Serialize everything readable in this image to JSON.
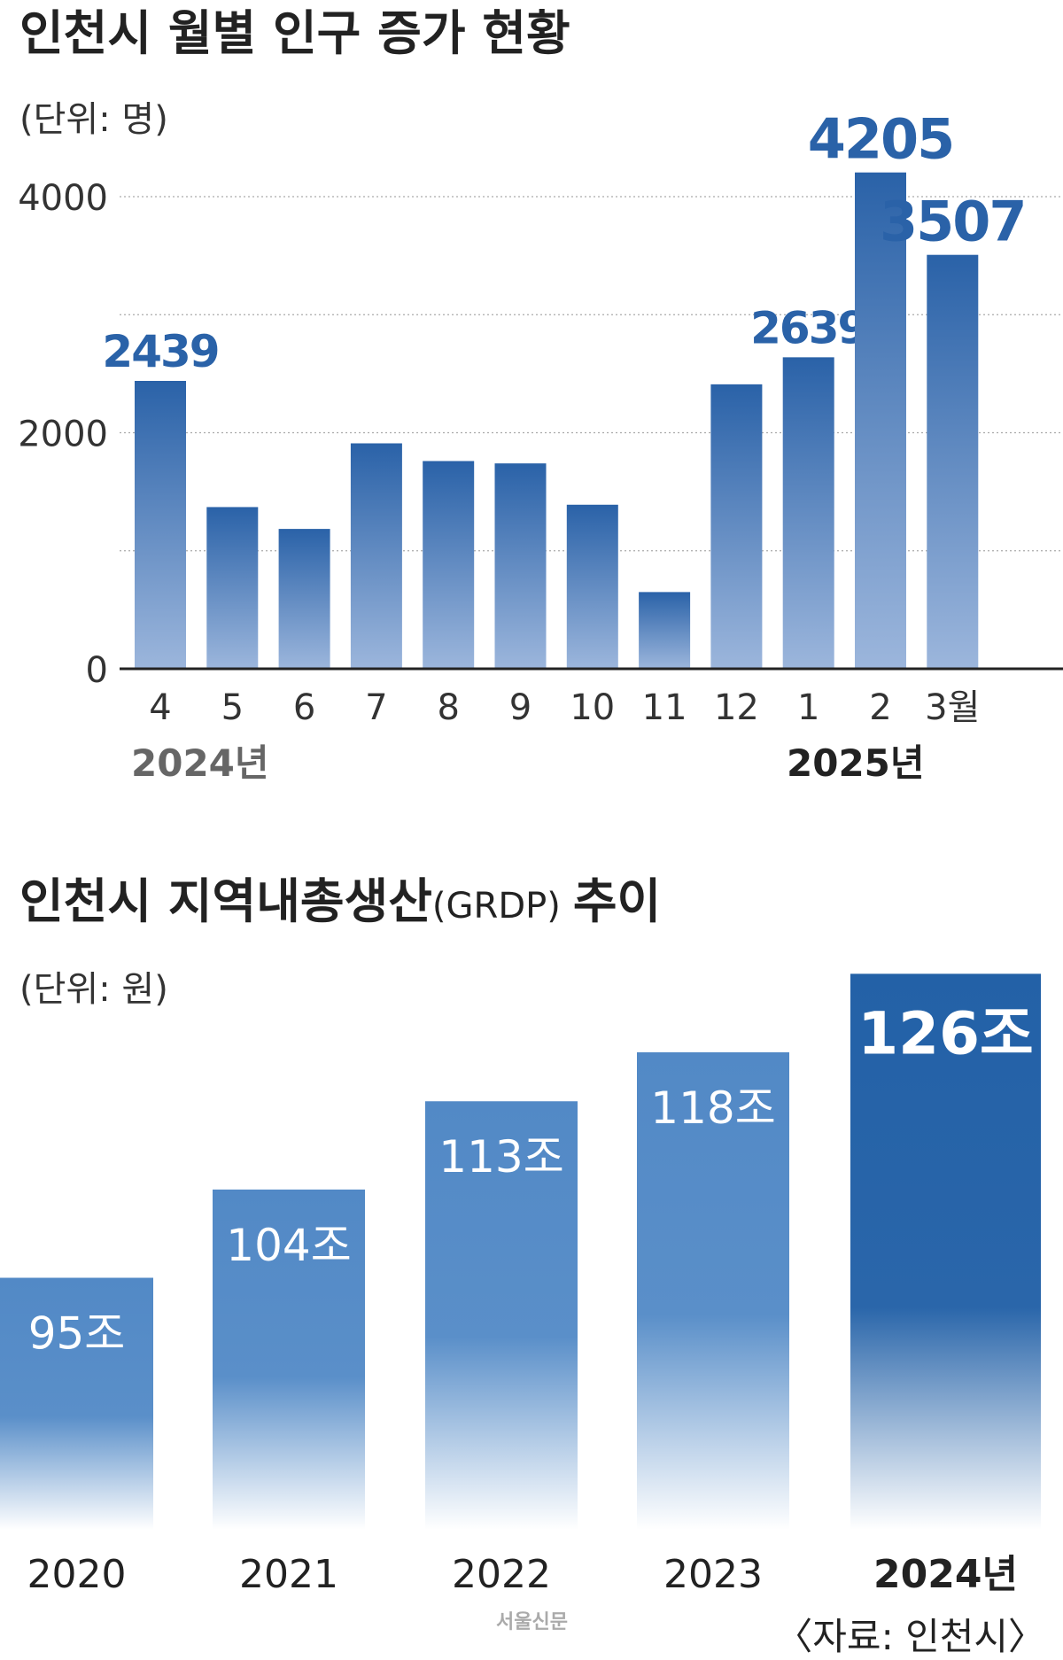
{
  "chart_data": [
    {
      "type": "bar",
      "title": "인천시 월별 인구 증가 현황",
      "unit": "(단위: 명)",
      "categories": [
        "4",
        "5",
        "6",
        "7",
        "8",
        "9",
        "10",
        "11",
        "12",
        "1",
        "2",
        "3월"
      ],
      "values": [
        2439,
        1370,
        1185,
        1910,
        1760,
        1740,
        1390,
        650,
        2410,
        2639,
        4205,
        3507
      ],
      "data_labels": {
        "0": "2439",
        "9": "2639",
        "10": "4205",
        "11": "3507"
      },
      "year_labels": [
        "2024년",
        "2025년"
      ],
      "yticks": [
        "0",
        "2000",
        "4000"
      ],
      "ytick_values": [
        0,
        2000,
        4000
      ],
      "gridlines": [
        1000,
        2000,
        3000,
        4000
      ],
      "ylim": [
        0,
        4300
      ],
      "grid": true,
      "colors": {
        "top": "#2a62a8",
        "bottom": "#9cb6dc",
        "label": "#2a62a8"
      }
    },
    {
      "type": "bar",
      "title": "인천시 지역내총생산",
      "title_suffix": "(GRDP)",
      "title_end": "추이",
      "unit": "(단위: 원)",
      "categories": [
        "2020",
        "2021",
        "2022",
        "2023",
        "2024년"
      ],
      "values": [
        95,
        104,
        113,
        118,
        126
      ],
      "data_labels": [
        "95조",
        "104조",
        "113조",
        "118조",
        "126조"
      ],
      "colors": {
        "normal": "#5289c6",
        "highlight": "#2361a7"
      }
    }
  ],
  "source": "〈자료: 인천시〉",
  "watermark": "서울신문"
}
